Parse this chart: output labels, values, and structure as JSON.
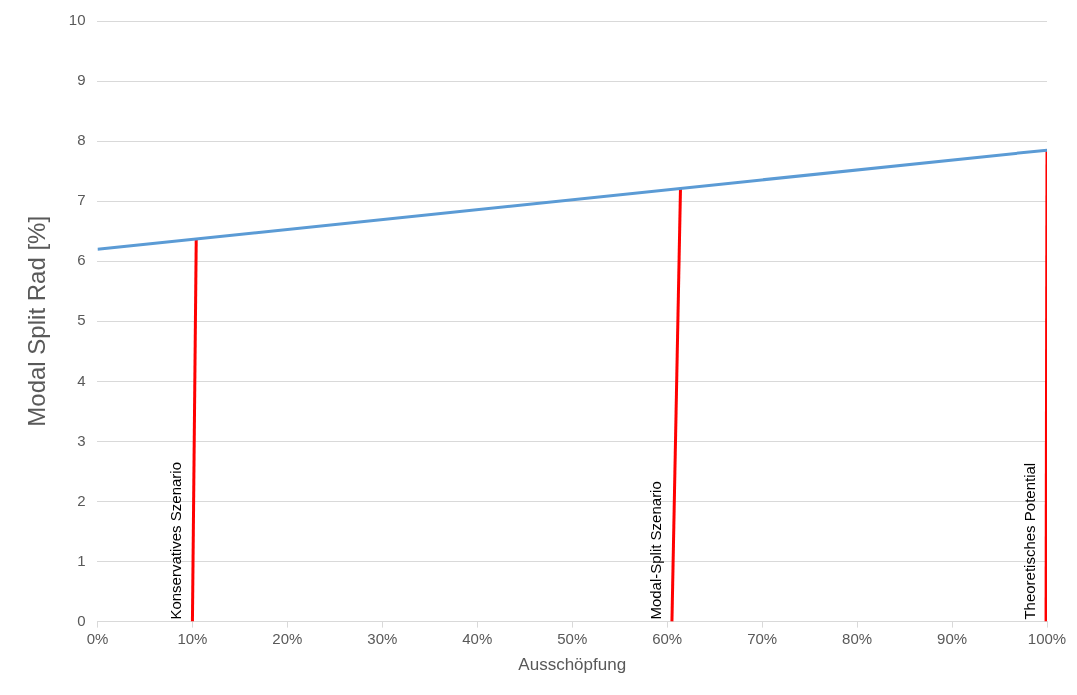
{
  "chart_data": {
    "type": "line",
    "xlabel": "Ausschöpfung",
    "ylabel": "Modal Split Rad [%]",
    "xlim": [
      0,
      100
    ],
    "xticks": [
      {
        "value": 0,
        "label": "0%"
      },
      {
        "value": 10,
        "label": "10%"
      },
      {
        "value": 20,
        "label": "20%"
      },
      {
        "value": 30,
        "label": "30%"
      },
      {
        "value": 40,
        "label": "40%"
      },
      {
        "value": 50,
        "label": "50%"
      },
      {
        "value": 60,
        "label": "60%"
      },
      {
        "value": 70,
        "label": "70%"
      },
      {
        "value": 80,
        "label": "80%"
      },
      {
        "value": 90,
        "label": "90%"
      },
      {
        "value": 100,
        "label": "100%"
      }
    ],
    "ylim": [
      0,
      10
    ],
    "yticks": [
      0,
      1,
      2,
      3,
      4,
      5,
      6,
      7,
      8,
      9,
      10
    ],
    "series": [
      {
        "color": "#5b9bd5",
        "x": [
          0,
          100
        ],
        "values": [
          6.2,
          7.85
        ]
      },
      {
        "color": "#ff0000",
        "x": [
          10,
          10.4
        ],
        "values": [
          0,
          6.37
        ]
      },
      {
        "color": "#ff0000",
        "x": [
          60.5,
          61.4
        ],
        "values": [
          0,
          7.21
        ]
      },
      {
        "color": "#ff0000",
        "x": [
          99.9,
          100
        ],
        "values": [
          0,
          7.87
        ]
      }
    ],
    "annotations": [
      {
        "text": "Konservatives Szenario",
        "x": 10,
        "y": 0
      },
      {
        "text": "Modal-Split Szenario",
        "x": 60.5,
        "y": 0
      },
      {
        "text": "Theoretisches Potential",
        "x": 99.9,
        "y": 0
      }
    ],
    "grid": "y",
    "legend": false,
    "marker": "none",
    "line_style": "solid"
  }
}
